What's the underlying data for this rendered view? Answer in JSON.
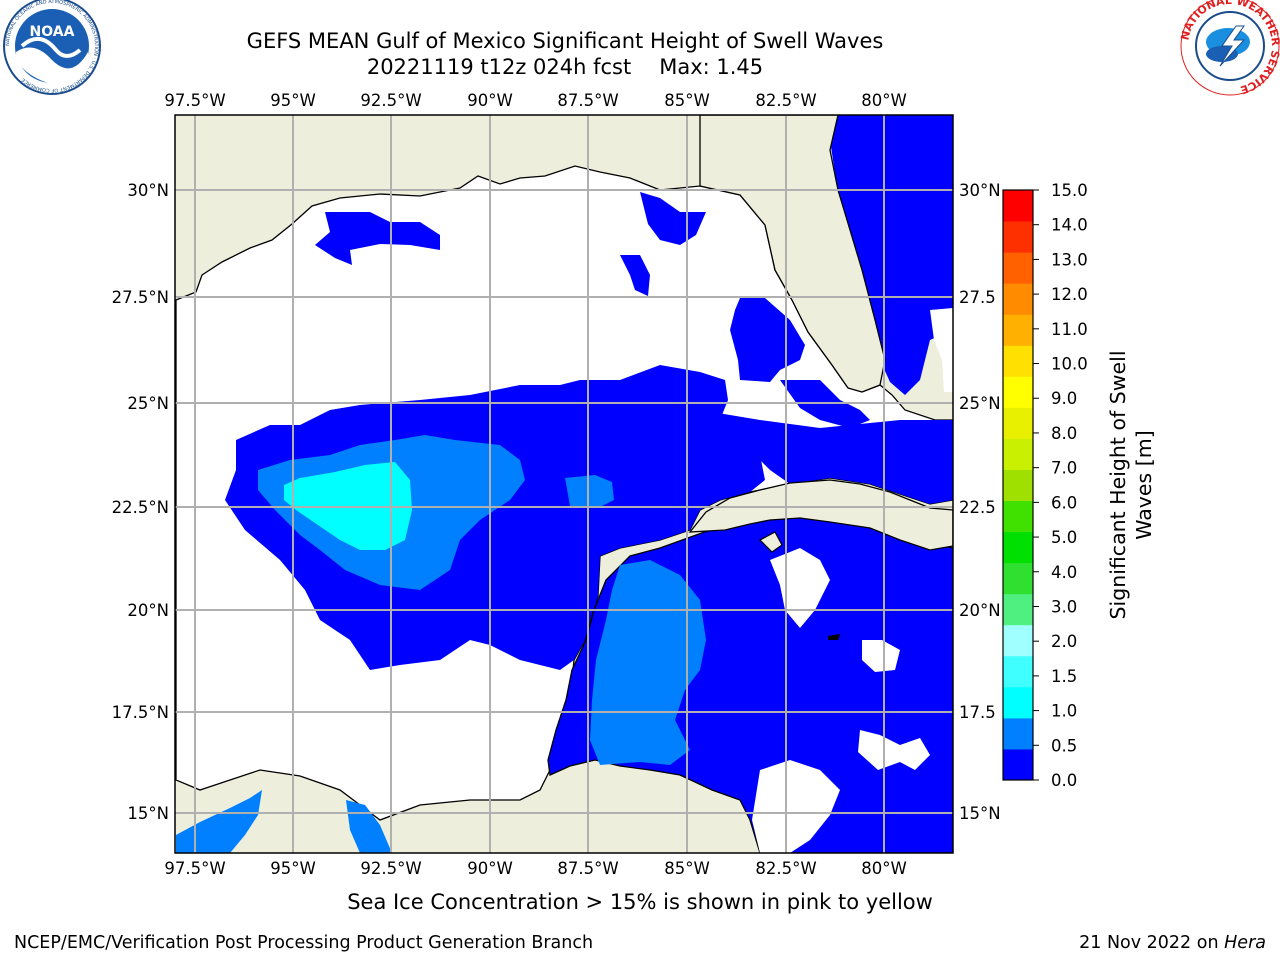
{
  "header": {
    "title_line1": "GEFS MEAN Gulf of Mexico Significant Height of Swell Waves",
    "run": "20221119 t12z 024h fcst",
    "max_label": "Max: 1.45"
  },
  "logos": {
    "left_text": "NOAA",
    "left_ring_text": "NATIONAL OCEANIC AND ATMOSPHERIC ADMINISTRATION · U.S. DEPARTMENT OF COMMERCE",
    "right_ring_text": "NATIONAL WEATHER SERVICE"
  },
  "map": {
    "lon_labels": [
      "97.5°W",
      "95°W",
      "92.5°W",
      "90°W",
      "87.5°W",
      "85°W",
      "82.5°W",
      "80°W"
    ],
    "lat_labels_left": [
      "30°N",
      "27.5°N",
      "25°N",
      "22.5°N",
      "20°N",
      "17.5°N",
      "15°N"
    ],
    "lat_labels_right": [
      "30°N",
      "27.5",
      "25°N",
      "22.5",
      "20°N",
      "17.5",
      "15°N"
    ],
    "colors": {
      "land": "#eeeedc",
      "ocean_lt_0": "#ffffff",
      "band_0_0.5": "#0000ff",
      "band_0.5_1.0": "#0080ff",
      "band_1.0_1.5": "#00ffff",
      "grid": "#b0b0b0"
    }
  },
  "colorbar": {
    "ticks": [
      "15.0",
      "14.0",
      "13.0",
      "12.0",
      "11.0",
      "10.0",
      "9.0",
      "8.0",
      "7.0",
      "6.0",
      "5.0",
      "4.0",
      "3.0",
      "2.0",
      "1.5",
      "1.0",
      "0.5",
      "0.0"
    ],
    "colors": [
      "#0000ff",
      "#0080ff",
      "#00ffff",
      "#40ffff",
      "#a0ffff",
      "#50f080",
      "#30e030",
      "#00e000",
      "#40e000",
      "#a0e000",
      "#c8f000",
      "#e8f000",
      "#ffff00",
      "#ffe000",
      "#ffb000",
      "#ff8c00",
      "#ff6000",
      "#ff3000",
      "#ff0000"
    ],
    "title_line1": "Significant Height of Swell",
    "title_line2": "Waves [m]"
  },
  "caption": "Sea Ice Concentration > 15% is shown in pink to yellow",
  "footer": {
    "org": "NCEP/EMC/Verification Post Processing Product Generation Branch",
    "date": "21 Nov 2022 on",
    "host": "Hera"
  }
}
